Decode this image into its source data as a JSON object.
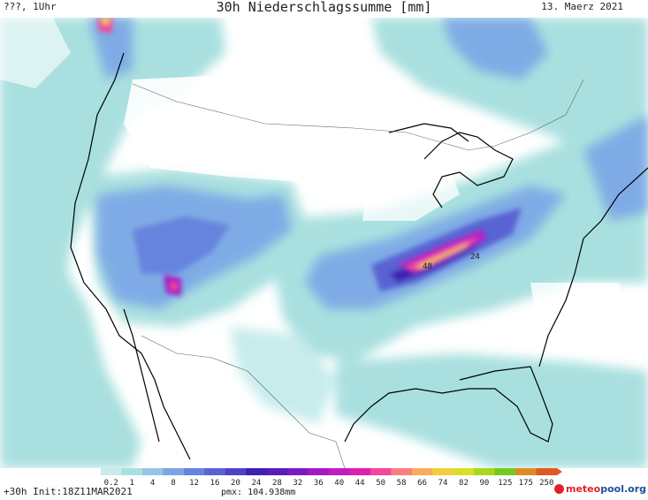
{
  "header": {
    "left": "???, 1Uhr",
    "title": "30h Niederschlagssumme [mm]",
    "date": "13. Maerz 2021"
  },
  "map": {
    "region": "USA / Nordamerika",
    "value_labels": [
      "48",
      "24"
    ]
  },
  "legend": {
    "ticks": [
      "0.2",
      "1",
      "4",
      "8",
      "12",
      "16",
      "20",
      "24",
      "28",
      "32",
      "36",
      "40",
      "44",
      "50",
      "58",
      "66",
      "74",
      "82",
      "90",
      "125",
      "175",
      "250"
    ],
    "colors": [
      "#c8ecec",
      "#a9e0df",
      "#93c6e6",
      "#7aa6e6",
      "#6684de",
      "#5a63d3",
      "#4d43c6",
      "#3d22b3",
      "#5a1cb8",
      "#7a1ac1",
      "#a11ac5",
      "#c21bc2",
      "#e01fb0",
      "#f2479b",
      "#f77f80",
      "#fbab5c",
      "#f2cf3a",
      "#d9df28",
      "#a8d71e",
      "#73cb1f",
      "#e08a27",
      "#e0591f"
    ],
    "pmx": "pmx: 104.938mm"
  },
  "footer": {
    "left": "+30h Init:18Z11MAR2021",
    "logo_part1": "meteo",
    "logo_part2": "pool.org"
  }
}
